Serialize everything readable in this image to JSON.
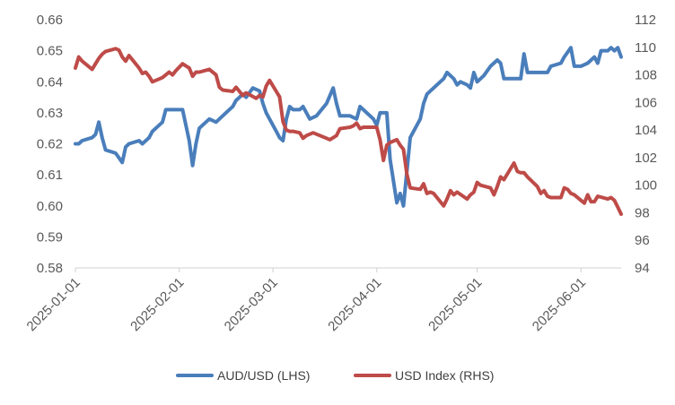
{
  "chart_data": {
    "type": "line",
    "title": "",
    "xlabel": "",
    "x_ticks": [
      "2025-01-01",
      "2025-02-01",
      "2025-03-01",
      "2025-04-01",
      "2025-05-01",
      "2025-06-01"
    ],
    "x_range": [
      "2025-01-01",
      "2025-06-13"
    ],
    "y_left": {
      "ylim": [
        0.58,
        0.66
      ],
      "ticks": [
        "0.58",
        "0.59",
        "0.60",
        "0.61",
        "0.62",
        "0.63",
        "0.64",
        "0.65",
        "0.66"
      ]
    },
    "y_right": {
      "ylim": [
        94,
        112
      ],
      "ticks": [
        "94",
        "96",
        "98",
        "100",
        "102",
        "104",
        "106",
        "108",
        "110",
        "112"
      ]
    },
    "grid": false,
    "legend_position": "bottom",
    "series": [
      {
        "name": "AUD/USD (LHS)",
        "axis": "left",
        "color": "#4a7ebb",
        "points": [
          [
            "2025-01-01",
            0.62
          ],
          [
            "2025-01-02",
            0.62
          ],
          [
            "2025-01-03",
            0.621
          ],
          [
            "2025-01-06",
            0.622
          ],
          [
            "2025-01-07",
            0.623
          ],
          [
            "2025-01-08",
            0.627
          ],
          [
            "2025-01-09",
            0.622
          ],
          [
            "2025-01-10",
            0.618
          ],
          [
            "2025-01-13",
            0.617
          ],
          [
            "2025-01-15",
            0.614
          ],
          [
            "2025-01-16",
            0.619
          ],
          [
            "2025-01-17",
            0.62
          ],
          [
            "2025-01-20",
            0.621
          ],
          [
            "2025-01-21",
            0.62
          ],
          [
            "2025-01-23",
            0.622
          ],
          [
            "2025-01-24",
            0.624
          ],
          [
            "2025-01-26",
            0.626
          ],
          [
            "2025-01-27",
            0.627
          ],
          [
            "2025-01-28",
            0.631
          ],
          [
            "2025-01-31",
            0.631
          ],
          [
            "2025-02-02",
            0.631
          ],
          [
            "2025-02-04",
            0.621
          ],
          [
            "2025-02-05",
            0.613
          ],
          [
            "2025-02-06",
            0.62
          ],
          [
            "2025-02-07",
            0.625
          ],
          [
            "2025-02-08",
            0.626
          ],
          [
            "2025-02-10",
            0.628
          ],
          [
            "2025-02-12",
            0.627
          ],
          [
            "2025-02-13",
            0.628
          ],
          [
            "2025-02-14",
            0.629
          ],
          [
            "2025-02-17",
            0.632
          ],
          [
            "2025-02-18",
            0.634
          ],
          [
            "2025-02-19",
            0.635
          ],
          [
            "2025-02-20",
            0.636
          ],
          [
            "2025-02-21",
            0.635
          ],
          [
            "2025-02-23",
            0.638
          ],
          [
            "2025-02-25",
            0.637
          ],
          [
            "2025-02-26",
            0.633
          ],
          [
            "2025-02-27",
            0.63
          ],
          [
            "2025-02-28",
            0.628
          ],
          [
            "2025-03-02",
            0.624
          ],
          [
            "2025-03-03",
            0.622
          ],
          [
            "2025-03-04",
            0.621
          ],
          [
            "2025-03-05",
            0.628
          ],
          [
            "2025-03-06",
            0.632
          ],
          [
            "2025-03-07",
            0.631
          ],
          [
            "2025-03-09",
            0.631
          ],
          [
            "2025-03-10",
            0.632
          ],
          [
            "2025-03-12",
            0.628
          ],
          [
            "2025-03-14",
            0.629
          ],
          [
            "2025-03-17",
            0.633
          ],
          [
            "2025-03-19",
            0.638
          ],
          [
            "2025-03-20",
            0.633
          ],
          [
            "2025-03-21",
            0.629
          ],
          [
            "2025-03-24",
            0.629
          ],
          [
            "2025-03-26",
            0.628
          ],
          [
            "2025-03-27",
            0.632
          ],
          [
            "2025-03-31",
            0.628
          ],
          [
            "2025-04-01",
            0.626
          ],
          [
            "2025-04-02",
            0.63
          ],
          [
            "2025-04-04",
            0.63
          ],
          [
            "2025-04-05",
            0.615
          ],
          [
            "2025-04-07",
            0.601
          ],
          [
            "2025-04-08",
            0.604
          ],
          [
            "2025-04-09",
            0.6
          ],
          [
            "2025-04-11",
            0.622
          ],
          [
            "2025-04-14",
            0.628
          ],
          [
            "2025-04-15",
            0.633
          ],
          [
            "2025-04-16",
            0.636
          ],
          [
            "2025-04-17",
            0.637
          ],
          [
            "2025-04-21",
            0.641
          ],
          [
            "2025-04-22",
            0.643
          ],
          [
            "2025-04-24",
            0.641
          ],
          [
            "2025-04-25",
            0.639
          ],
          [
            "2025-04-26",
            0.64
          ],
          [
            "2025-04-28",
            0.639
          ],
          [
            "2025-04-29",
            0.638
          ],
          [
            "2025-04-30",
            0.643
          ],
          [
            "2025-05-01",
            0.64
          ],
          [
            "2025-05-03",
            0.642
          ],
          [
            "2025-05-05",
            0.645
          ],
          [
            "2025-05-07",
            0.647
          ],
          [
            "2025-05-08",
            0.646
          ],
          [
            "2025-05-09",
            0.641
          ],
          [
            "2025-05-12",
            0.641
          ],
          [
            "2025-05-14",
            0.641
          ],
          [
            "2025-05-15",
            0.649
          ],
          [
            "2025-05-16",
            0.643
          ],
          [
            "2025-05-19",
            0.643
          ],
          [
            "2025-05-22",
            0.643
          ],
          [
            "2025-05-23",
            0.645
          ],
          [
            "2025-05-26",
            0.646
          ],
          [
            "2025-05-27",
            0.648
          ],
          [
            "2025-05-29",
            0.651
          ],
          [
            "2025-05-30",
            0.645
          ],
          [
            "2025-06-01",
            0.645
          ],
          [
            "2025-06-03",
            0.646
          ],
          [
            "2025-06-05",
            0.648
          ],
          [
            "2025-06-06",
            0.646
          ],
          [
            "2025-06-07",
            0.65
          ],
          [
            "2025-06-09",
            0.65
          ],
          [
            "2025-06-10",
            0.651
          ],
          [
            "2025-06-11",
            0.65
          ],
          [
            "2025-06-12",
            0.651
          ],
          [
            "2025-06-13",
            0.648
          ]
        ]
      },
      {
        "name": "USD Index (RHS)",
        "axis": "right",
        "color": "#be4b48",
        "points": [
          [
            "2025-01-01",
            108.5
          ],
          [
            "2025-01-02",
            109.3
          ],
          [
            "2025-01-03",
            109.0
          ],
          [
            "2025-01-06",
            108.4
          ],
          [
            "2025-01-07",
            108.8
          ],
          [
            "2025-01-08",
            109.2
          ],
          [
            "2025-01-09",
            109.5
          ],
          [
            "2025-01-10",
            109.7
          ],
          [
            "2025-01-13",
            109.9
          ],
          [
            "2025-01-14",
            109.8
          ],
          [
            "2025-01-15",
            109.3
          ],
          [
            "2025-01-16",
            109.0
          ],
          [
            "2025-01-17",
            109.4
          ],
          [
            "2025-01-20",
            108.5
          ],
          [
            "2025-01-21",
            108.1
          ],
          [
            "2025-01-22",
            108.2
          ],
          [
            "2025-01-23",
            107.9
          ],
          [
            "2025-01-24",
            107.5
          ],
          [
            "2025-01-26",
            107.7
          ],
          [
            "2025-01-27",
            107.8
          ],
          [
            "2025-01-28",
            108.0
          ],
          [
            "2025-01-29",
            108.2
          ],
          [
            "2025-01-30",
            108.0
          ],
          [
            "2025-01-31",
            108.3
          ],
          [
            "2025-02-02",
            108.8
          ],
          [
            "2025-02-04",
            108.5
          ],
          [
            "2025-02-05",
            107.9
          ],
          [
            "2025-02-06",
            108.2
          ],
          [
            "2025-02-07",
            108.2
          ],
          [
            "2025-02-10",
            108.4
          ],
          [
            "2025-02-12",
            108.0
          ],
          [
            "2025-02-13",
            107.1
          ],
          [
            "2025-02-14",
            106.9
          ],
          [
            "2025-02-17",
            106.8
          ],
          [
            "2025-02-18",
            107.1
          ],
          [
            "2025-02-20",
            106.5
          ],
          [
            "2025-02-21",
            106.7
          ],
          [
            "2025-02-24",
            106.3
          ],
          [
            "2025-02-25",
            106.5
          ],
          [
            "2025-02-26",
            106.4
          ],
          [
            "2025-02-27",
            107.2
          ],
          [
            "2025-02-28",
            107.6
          ],
          [
            "2025-03-02",
            106.8
          ],
          [
            "2025-03-03",
            106.4
          ],
          [
            "2025-03-04",
            104.6
          ],
          [
            "2025-03-05",
            104.0
          ],
          [
            "2025-03-06",
            103.9
          ],
          [
            "2025-03-07",
            103.9
          ],
          [
            "2025-03-09",
            103.8
          ],
          [
            "2025-03-10",
            103.4
          ],
          [
            "2025-03-11",
            103.6
          ],
          [
            "2025-03-13",
            103.8
          ],
          [
            "2025-03-17",
            103.4
          ],
          [
            "2025-03-18",
            103.3
          ],
          [
            "2025-03-20",
            103.6
          ],
          [
            "2025-03-21",
            104.1
          ],
          [
            "2025-03-24",
            104.2
          ],
          [
            "2025-03-25",
            104.3
          ],
          [
            "2025-03-26",
            104.5
          ],
          [
            "2025-03-27",
            104.1
          ],
          [
            "2025-03-28",
            104.2
          ],
          [
            "2025-03-31",
            104.2
          ],
          [
            "2025-04-01",
            104.2
          ],
          [
            "2025-04-02",
            103.3
          ],
          [
            "2025-04-03",
            101.8
          ],
          [
            "2025-04-04",
            102.9
          ],
          [
            "2025-04-05",
            103.1
          ],
          [
            "2025-04-07",
            103.3
          ],
          [
            "2025-04-08",
            102.9
          ],
          [
            "2025-04-09",
            102.6
          ],
          [
            "2025-04-10",
            100.8
          ],
          [
            "2025-04-11",
            99.8
          ],
          [
            "2025-04-14",
            99.7
          ],
          [
            "2025-04-15",
            100.1
          ],
          [
            "2025-04-16",
            99.4
          ],
          [
            "2025-04-17",
            99.5
          ],
          [
            "2025-04-18",
            99.4
          ],
          [
            "2025-04-21",
            98.5
          ],
          [
            "2025-04-22",
            99.0
          ],
          [
            "2025-04-23",
            99.6
          ],
          [
            "2025-04-24",
            99.3
          ],
          [
            "2025-04-25",
            99.5
          ],
          [
            "2025-04-28",
            99.0
          ],
          [
            "2025-04-29",
            99.3
          ],
          [
            "2025-04-30",
            99.5
          ],
          [
            "2025-05-01",
            100.2
          ],
          [
            "2025-05-02",
            100.0
          ],
          [
            "2025-05-05",
            99.8
          ],
          [
            "2025-05-06",
            99.3
          ],
          [
            "2025-05-07",
            99.9
          ],
          [
            "2025-05-08",
            100.6
          ],
          [
            "2025-05-09",
            100.4
          ],
          [
            "2025-05-12",
            101.6
          ],
          [
            "2025-05-13",
            101.0
          ],
          [
            "2025-05-14",
            100.9
          ],
          [
            "2025-05-15",
            100.9
          ],
          [
            "2025-05-16",
            100.6
          ],
          [
            "2025-05-19",
            99.9
          ],
          [
            "2025-05-20",
            99.4
          ],
          [
            "2025-05-21",
            99.6
          ],
          [
            "2025-05-22",
            99.2
          ],
          [
            "2025-05-23",
            99.1
          ],
          [
            "2025-05-26",
            99.1
          ],
          [
            "2025-05-27",
            99.8
          ],
          [
            "2025-05-28",
            99.7
          ],
          [
            "2025-05-29",
            99.4
          ],
          [
            "2025-05-30",
            99.3
          ],
          [
            "2025-06-02",
            98.7
          ],
          [
            "2025-06-03",
            99.3
          ],
          [
            "2025-06-04",
            98.8
          ],
          [
            "2025-06-05",
            98.8
          ],
          [
            "2025-06-06",
            99.2
          ],
          [
            "2025-06-09",
            99.0
          ],
          [
            "2025-06-10",
            99.1
          ],
          [
            "2025-06-11",
            98.9
          ],
          [
            "2025-06-12",
            98.4
          ],
          [
            "2025-06-13",
            97.9
          ]
        ]
      }
    ]
  }
}
